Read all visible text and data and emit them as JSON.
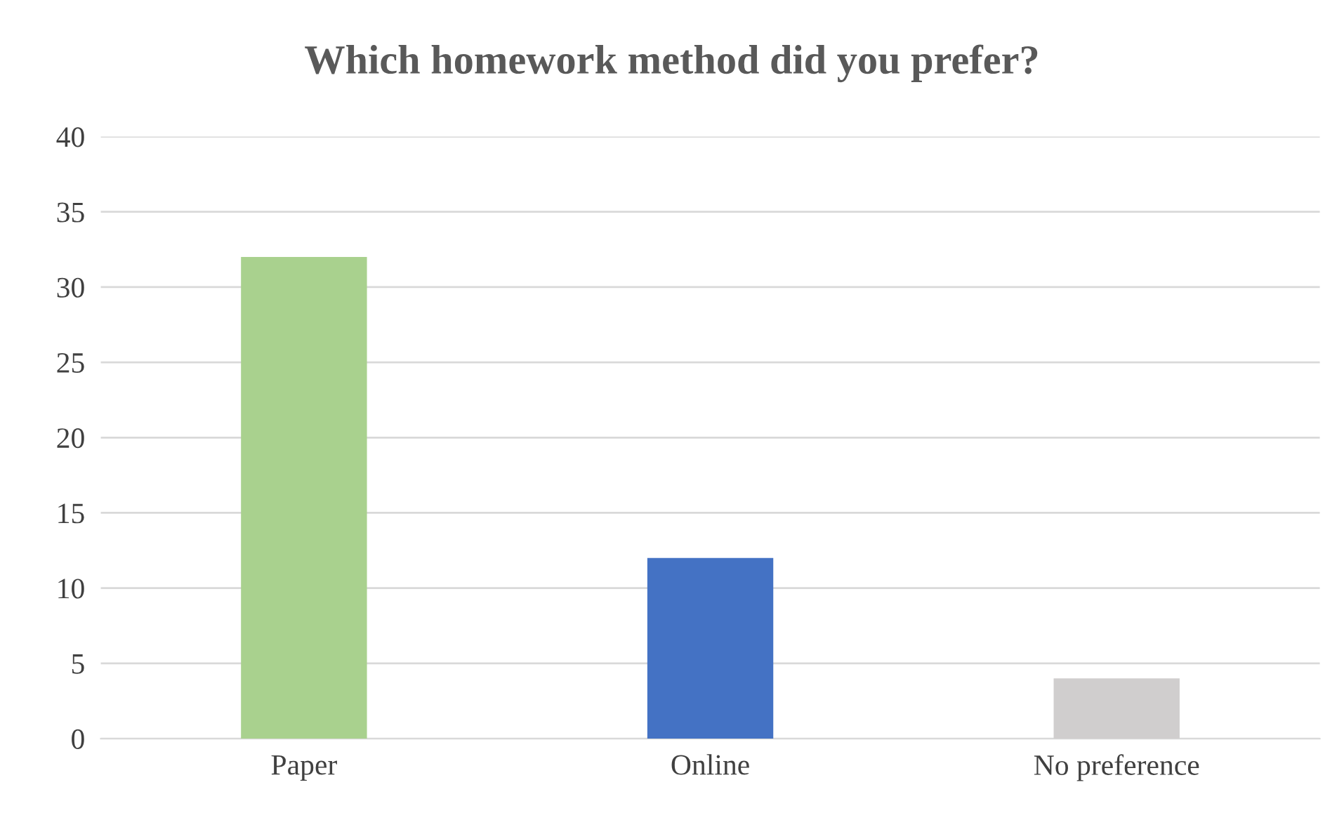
{
  "chart_data": {
    "type": "bar",
    "title": "Which homework method did you prefer?",
    "categories": [
      "Paper",
      "Online",
      "No preference"
    ],
    "values": [
      32,
      12,
      4
    ],
    "colors": [
      "#a9d18e",
      "#4472c4",
      "#d0cece"
    ],
    "ylim": [
      0,
      40
    ],
    "yticks": [
      0,
      5,
      10,
      15,
      20,
      25,
      30,
      35,
      40
    ],
    "grid": "y"
  }
}
